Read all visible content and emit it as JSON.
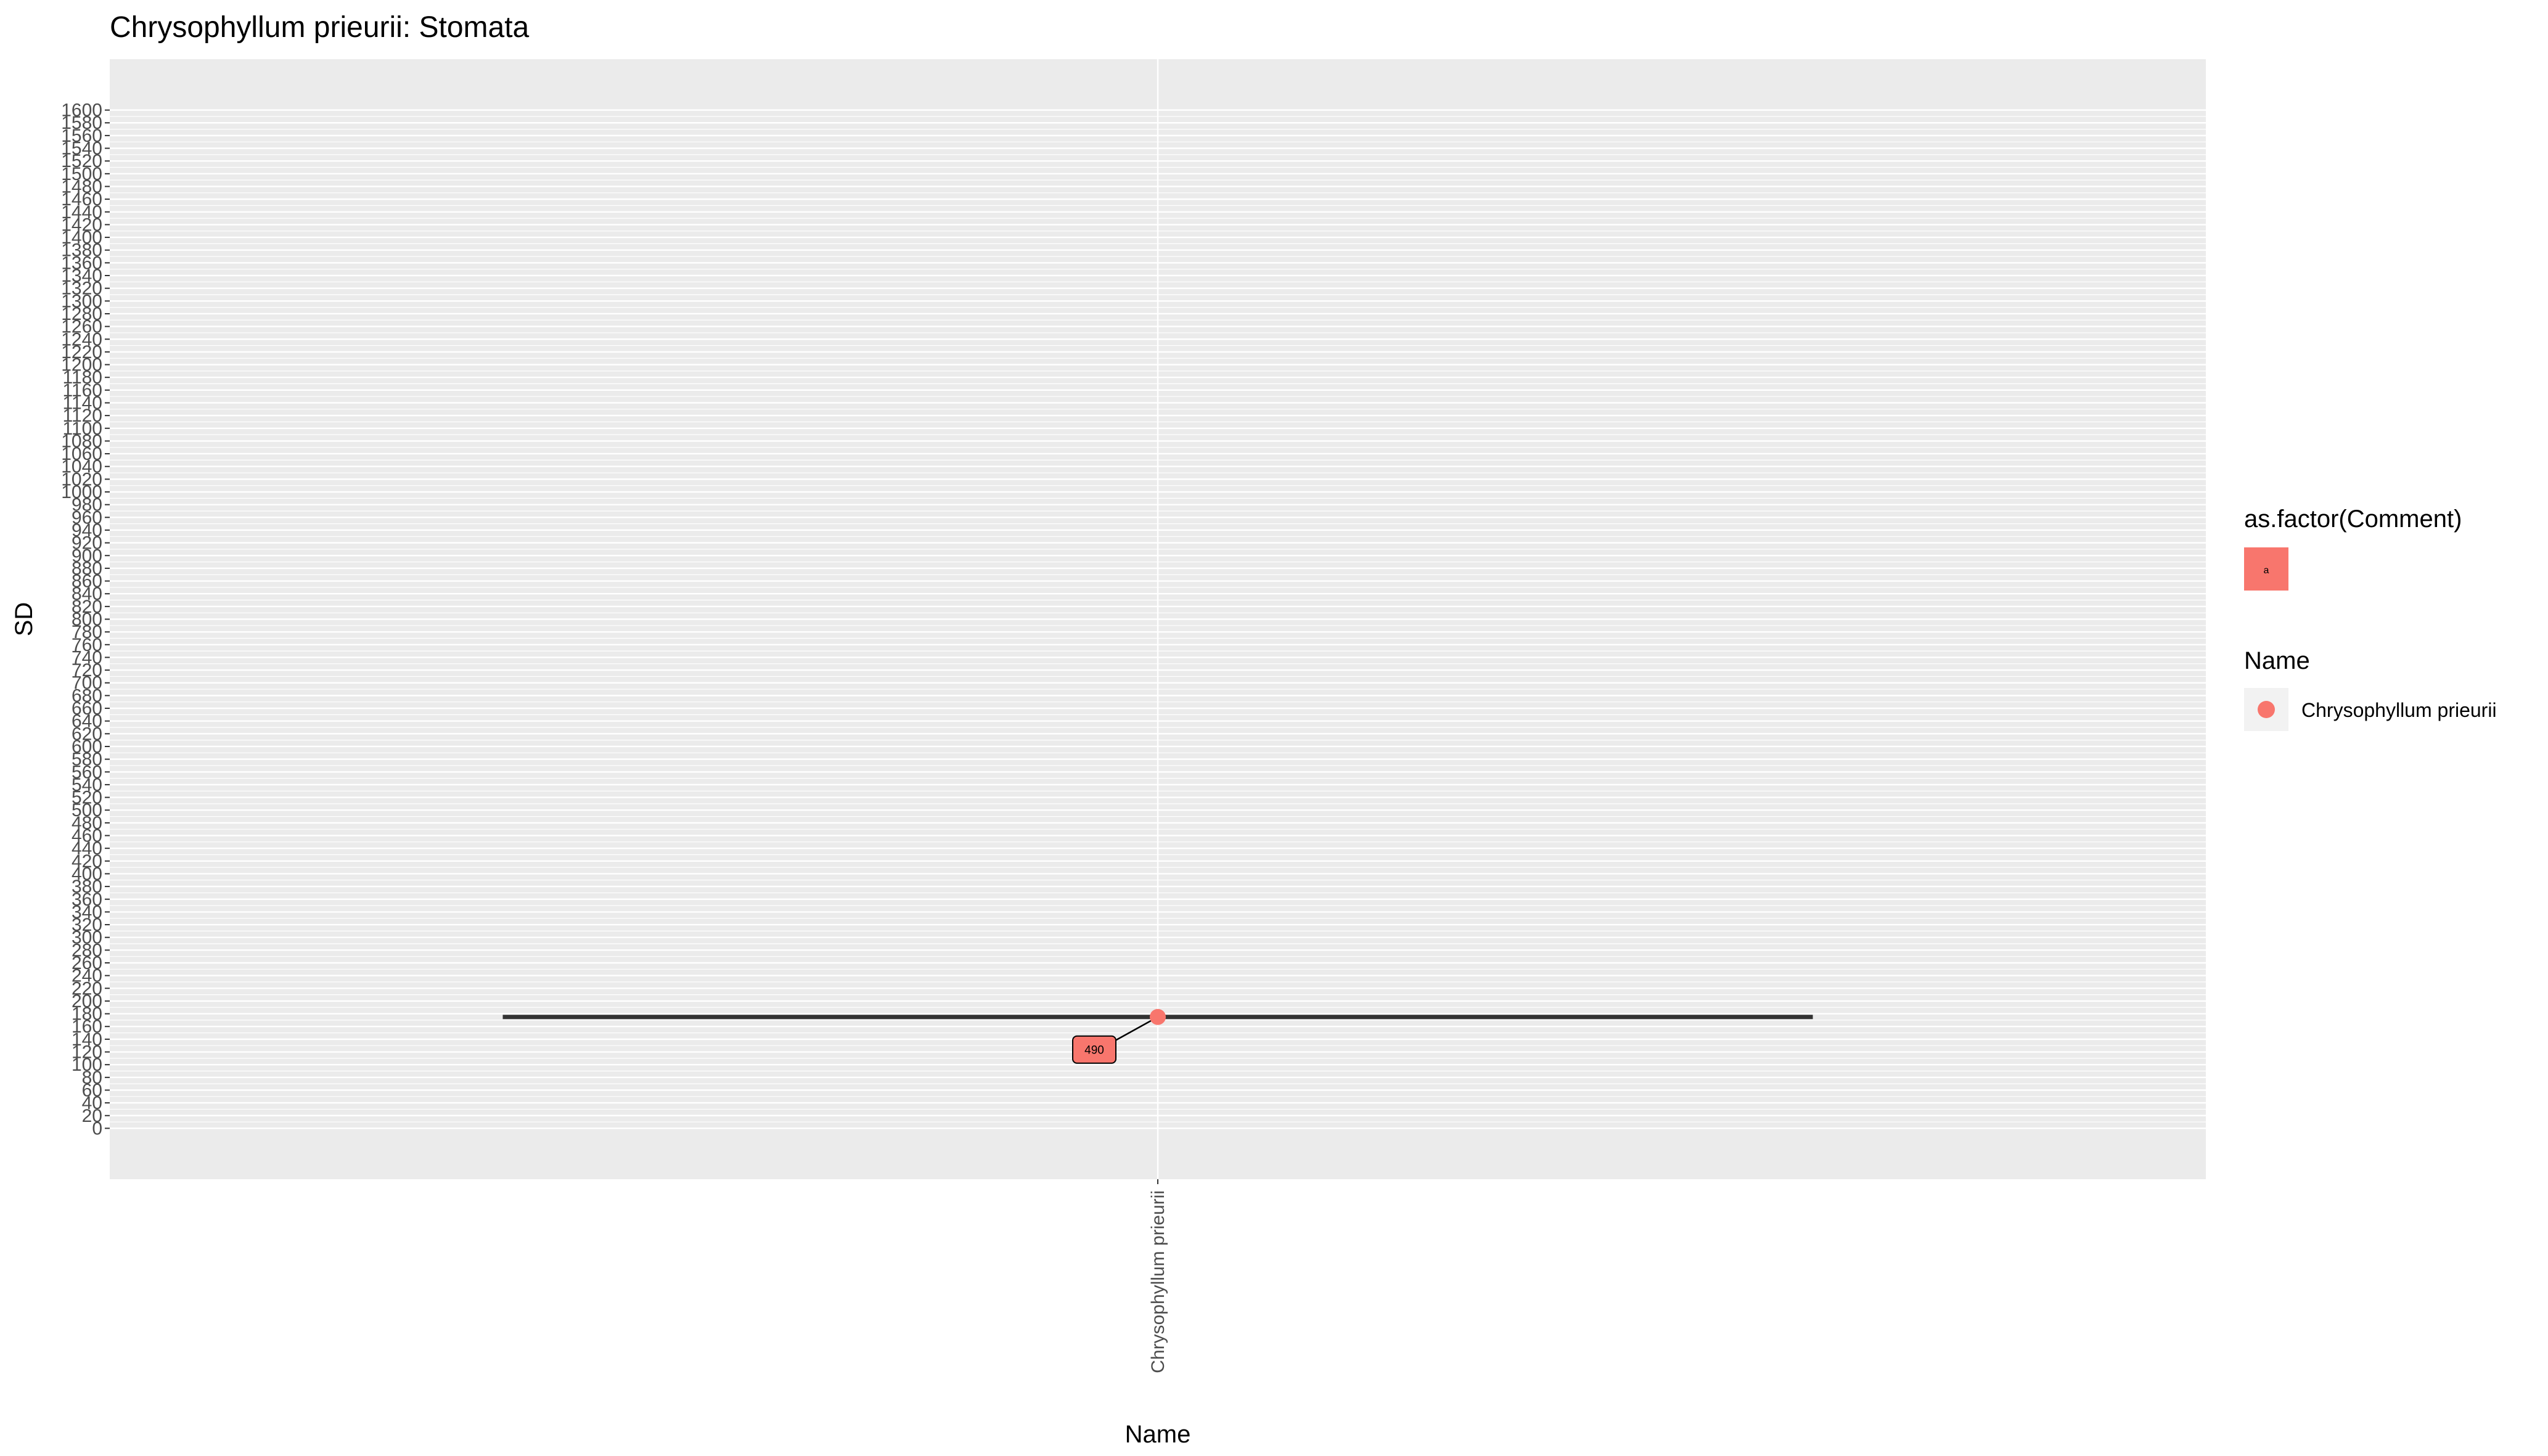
{
  "chart_data": {
    "type": "scatter",
    "title": "Chrysophyllum prieurii: Stomata",
    "xlabel": "Name",
    "ylabel": "SD",
    "categories": [
      "Chrysophyllum prieurii"
    ],
    "ylim": [
      -80,
      1680
    ],
    "y_ticks": [
      0,
      20,
      40,
      60,
      80,
      100,
      120,
      140,
      160,
      180,
      200,
      220,
      240,
      260,
      280,
      300,
      320,
      340,
      360,
      380,
      400,
      420,
      440,
      460,
      480,
      500,
      520,
      540,
      560,
      580,
      600,
      620,
      640,
      660,
      680,
      700,
      720,
      740,
      760,
      780,
      800,
      820,
      840,
      860,
      880,
      900,
      920,
      940,
      960,
      980,
      1000,
      1020,
      1040,
      1060,
      1080,
      1100,
      1120,
      1140,
      1160,
      1180,
      1200,
      1220,
      1240,
      1260,
      1280,
      1300,
      1320,
      1340,
      1360,
      1380,
      1400,
      1420,
      1440,
      1460,
      1480,
      1500,
      1520,
      1540,
      1560,
      1580,
      1600
    ],
    "grid": true,
    "points": [
      {
        "x": "Chrysophyllum prieurii",
        "y": 175,
        "label": "490",
        "comment": "a"
      }
    ],
    "hline": {
      "y": 175
    },
    "legends": [
      {
        "title": "as.factor(Comment)",
        "items": [
          {
            "key_label": "a",
            "color": "#F8766D",
            "shape": "label-box"
          }
        ]
      },
      {
        "title": "Name",
        "items": [
          {
            "label": "Chrysophyllum prieurii",
            "color": "#F8766D",
            "shape": "point"
          }
        ]
      }
    ],
    "colors": {
      "series": "#F8766D",
      "panel": "#EBEBEB",
      "grid": "#FFFFFF",
      "line": "#333333"
    }
  }
}
